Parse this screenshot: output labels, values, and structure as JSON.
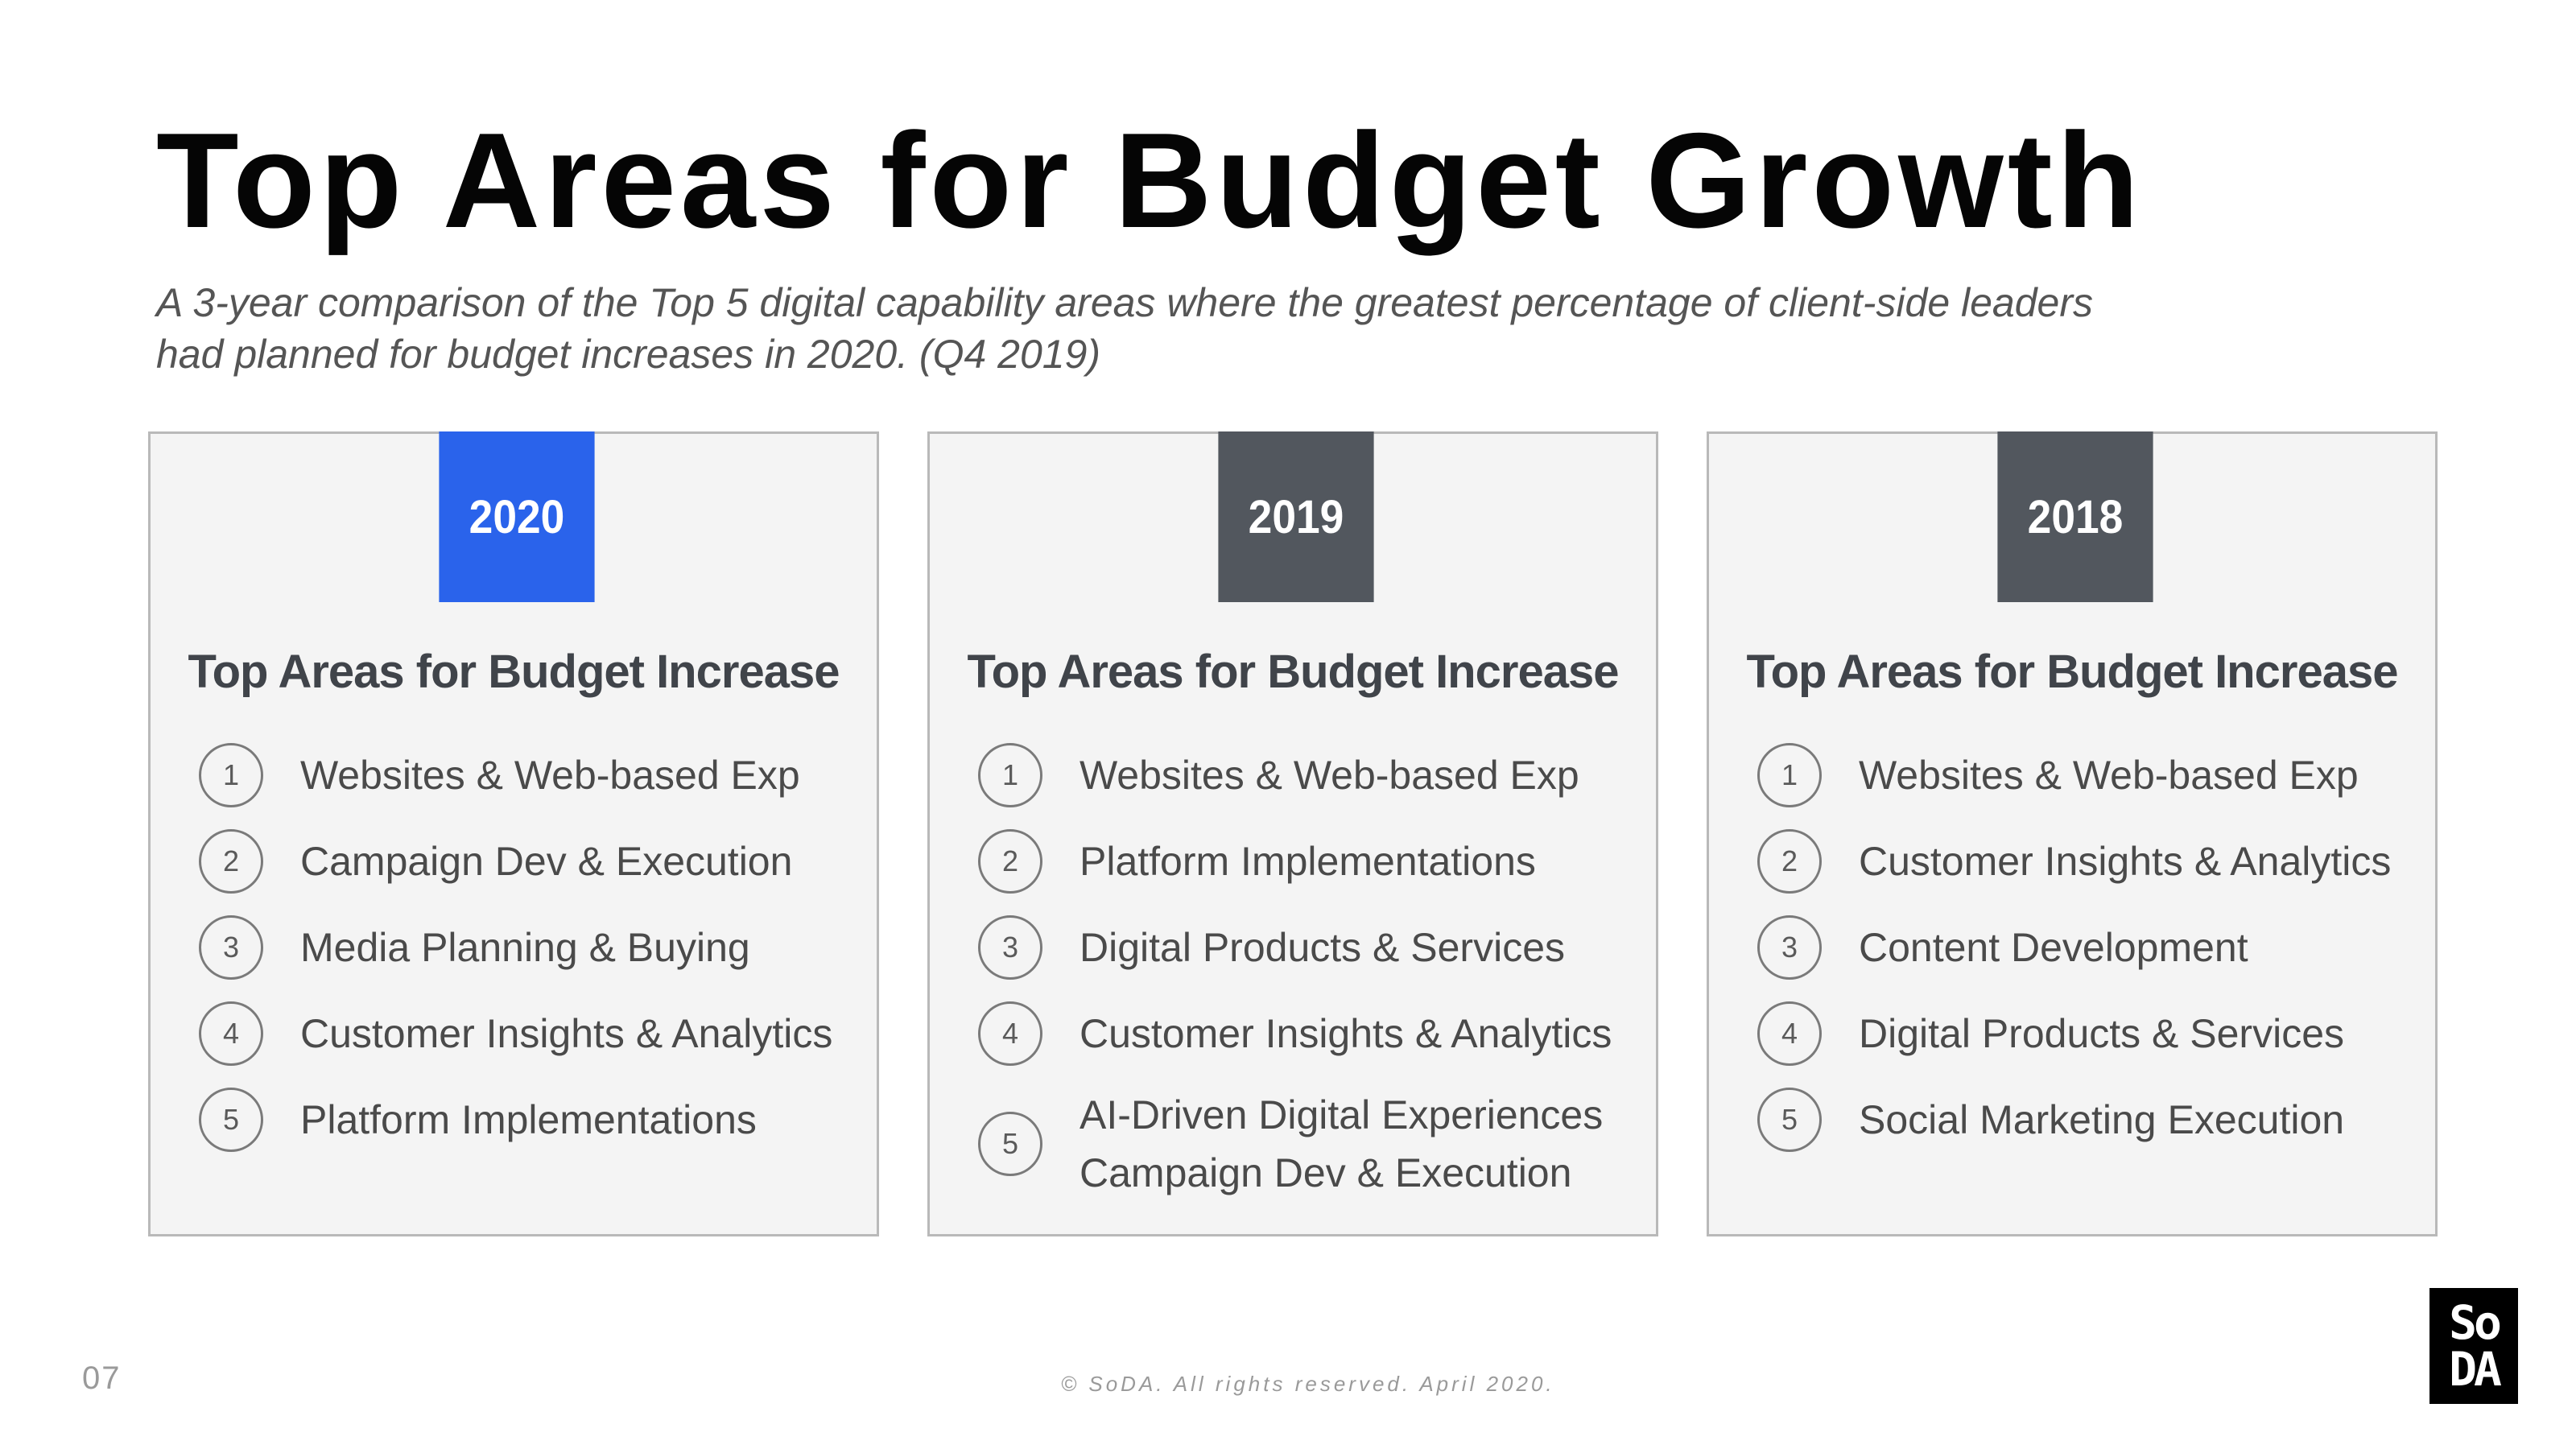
{
  "title": "Top Areas for Budget Growth",
  "subtitle": {
    "line1": "A 3-year comparison of the Top 5 digital capability areas where the greatest percentage of client-side leaders",
    "line2": "had planned for budget increases in 2020. (Q4 2019)"
  },
  "colors": {
    "highlight_tab": "#2a63eb",
    "default_tab": "#52575e",
    "card_background": "#f4f4f4"
  },
  "cards": [
    {
      "year": "2020",
      "heading": "Top Areas for Budget Increase",
      "items": [
        {
          "rank": "1",
          "lines": [
            "Websites & Web-based Exp"
          ]
        },
        {
          "rank": "2",
          "lines": [
            "Campaign Dev & Execution"
          ]
        },
        {
          "rank": "3",
          "lines": [
            "Media Planning & Buying"
          ]
        },
        {
          "rank": "4",
          "lines": [
            "Customer Insights & Analytics"
          ]
        },
        {
          "rank": "5",
          "lines": [
            "Platform Implementations"
          ]
        }
      ]
    },
    {
      "year": "2019",
      "heading": "Top Areas for Budget Increase",
      "items": [
        {
          "rank": "1",
          "lines": [
            "Websites & Web-based Exp"
          ]
        },
        {
          "rank": "2",
          "lines": [
            "Platform Implementations"
          ]
        },
        {
          "rank": "3",
          "lines": [
            "Digital Products & Services"
          ]
        },
        {
          "rank": "4",
          "lines": [
            "Customer Insights & Analytics"
          ]
        },
        {
          "rank": "5",
          "lines": [
            "AI-Driven Digital Experiences",
            "Campaign Dev & Execution"
          ]
        }
      ]
    },
    {
      "year": "2018",
      "heading": "Top Areas for Budget Increase",
      "items": [
        {
          "rank": "1",
          "lines": [
            "Websites & Web-based Exp"
          ]
        },
        {
          "rank": "2",
          "lines": [
            "Customer Insights & Analytics"
          ]
        },
        {
          "rank": "3",
          "lines": [
            "Content Development"
          ]
        },
        {
          "rank": "4",
          "lines": [
            "Digital Products & Services"
          ]
        },
        {
          "rank": "5",
          "lines": [
            "Social Marketing Execution"
          ]
        }
      ]
    }
  ],
  "page_number": "07",
  "footer": "© SoDA. All rights reserved. April 2020.",
  "logo": {
    "line1": "So",
    "line2": "DA"
  }
}
